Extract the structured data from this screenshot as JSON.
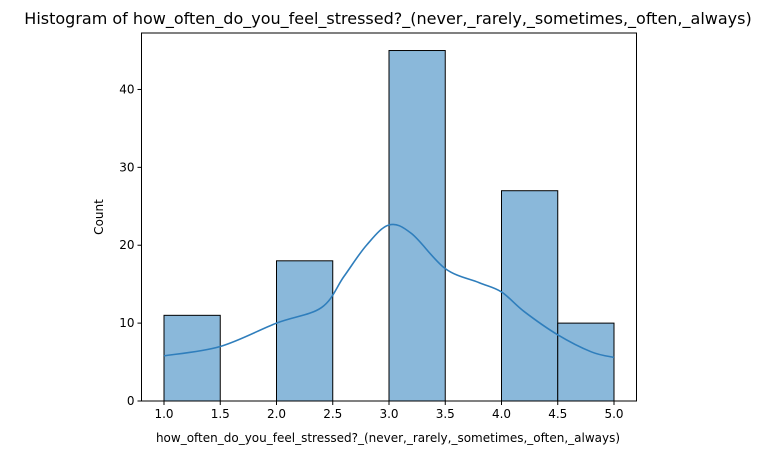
{
  "chart_data": {
    "type": "bar",
    "title": "Histogram of how_often_do_you_feel_stressed?_(never,_rarely,_sometimes,_often,_always)",
    "xlabel": "how_often_do_you_feel_stressed?_(never,_rarely,_sometimes,_often,_always)",
    "ylabel": "Count",
    "xlim": [
      0.8,
      5.2
    ],
    "ylim": [
      0,
      47.25
    ],
    "grid": false,
    "legend": "none",
    "bar_color": "#8ab8da",
    "bar_edge_color": "#000000",
    "kde_color": "#2f7ebc",
    "x_ticks": [
      1.0,
      1.5,
      2.0,
      2.5,
      3.0,
      3.5,
      4.0,
      4.5,
      5.0
    ],
    "x_tick_labels": [
      "1.0",
      "1.5",
      "2.0",
      "2.5",
      "3.0",
      "3.5",
      "4.0",
      "4.5",
      "5.0"
    ],
    "y_ticks": [
      0,
      10,
      20,
      30,
      40
    ],
    "y_tick_labels": [
      "0",
      "10",
      "20",
      "30",
      "40"
    ],
    "bins": [
      {
        "start": 1.0,
        "end": 1.5,
        "count": 11
      },
      {
        "start": 2.0,
        "end": 2.5,
        "count": 18
      },
      {
        "start": 3.0,
        "end": 3.5,
        "count": 45
      },
      {
        "start": 4.0,
        "end": 4.5,
        "count": 27
      },
      {
        "start": 4.5,
        "end": 5.0,
        "count": 10
      }
    ],
    "kde": {
      "x": [
        1.0,
        1.5,
        2.0,
        2.4,
        2.6,
        2.8,
        3.0,
        3.2,
        3.5,
        3.8,
        4.0,
        4.2,
        4.5,
        4.8,
        5.0
      ],
      "y": [
        5.8,
        7.0,
        10.0,
        12.0,
        16.0,
        20.0,
        22.6,
        21.5,
        17.0,
        15.2,
        14.0,
        11.5,
        8.5,
        6.3,
        5.6
      ]
    }
  }
}
